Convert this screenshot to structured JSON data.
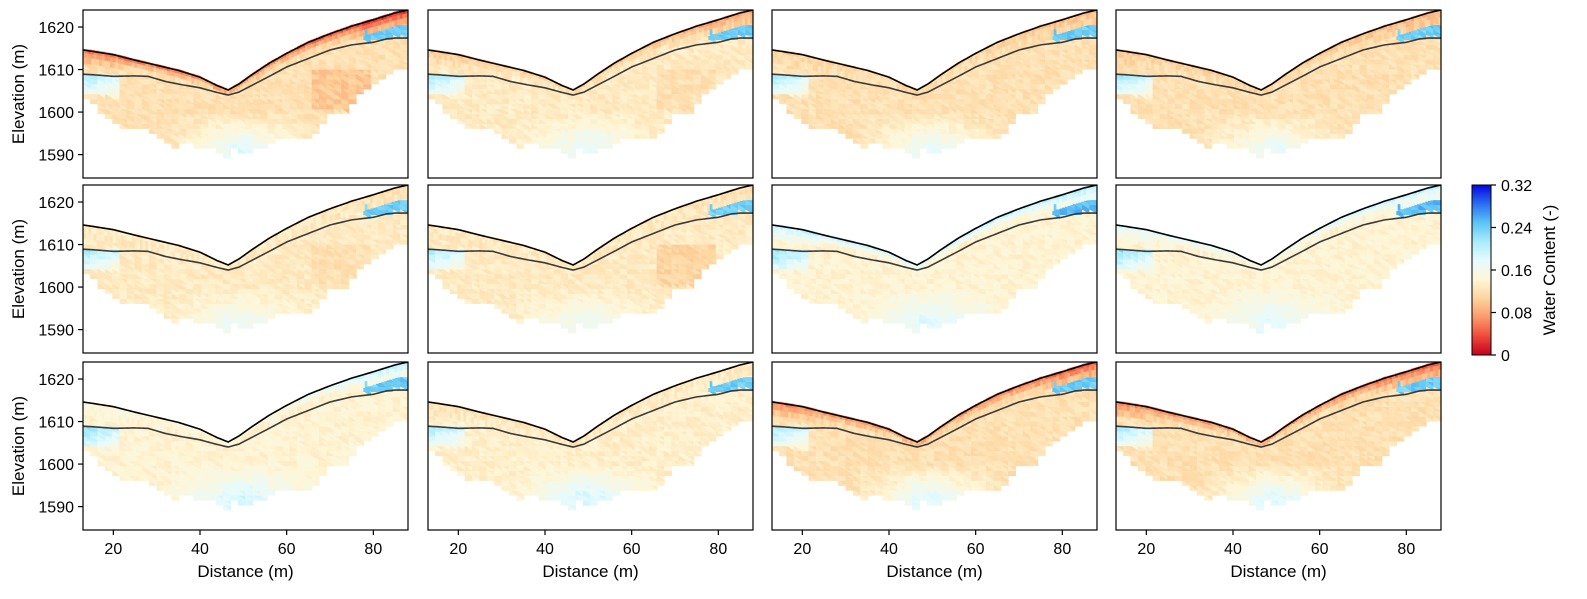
{
  "chart_data": {
    "type": "heatmap",
    "layout": {
      "rows": 3,
      "cols": 4
    },
    "xlabel": "Distance (m)",
    "ylabel": "Elevation (m)",
    "xlim": [
      13,
      88
    ],
    "ylim": [
      1584.5,
      1624
    ],
    "xticks": [
      20,
      40,
      60,
      80
    ],
    "yticks": [
      1590,
      1600,
      1610,
      1620
    ],
    "colorbar": {
      "label": "Water Content (-)",
      "range": [
        0,
        0.32
      ],
      "ticks": [
        "0",
        "0.08",
        "0.16",
        "0.24",
        "0.32"
      ],
      "colormap": [
        "#c4001e",
        "#f04a3a",
        "#fb9a6a",
        "#fdd49e",
        "#fff6d6",
        "#e6fbff",
        "#a9ecfb",
        "#5cc4f4",
        "#2a6ef2",
        "#0505e0"
      ]
    },
    "colors": {
      "surface_line": "#000000",
      "interface_line": "#3a3a3a"
    },
    "surface_profile": {
      "x": [
        13,
        15,
        20,
        25,
        30,
        35,
        40,
        44,
        46.5,
        49,
        52,
        56,
        60,
        65,
        70,
        75,
        80,
        85,
        88
      ],
      "y": [
        1614.6,
        1614.3,
        1613.5,
        1612.2,
        1611.0,
        1609.8,
        1608.2,
        1606.2,
        1605.2,
        1606.6,
        1608.8,
        1611.5,
        1613.8,
        1616.4,
        1618.4,
        1620.2,
        1621.7,
        1623.3,
        1624
      ]
    },
    "interface_profile": {
      "x": [
        13,
        15,
        20,
        25,
        28,
        32,
        36,
        40,
        44,
        46.5,
        49,
        52,
        56,
        60,
        65,
        70,
        75,
        80,
        83,
        85,
        88
      ],
      "y": [
        1608.9,
        1608.8,
        1608.4,
        1608.5,
        1608.4,
        1607.2,
        1606.4,
        1605.7,
        1604.6,
        1604.0,
        1604.7,
        1606.3,
        1608.4,
        1610.6,
        1612.6,
        1614.6,
        1615.8,
        1616.4,
        1617.2,
        1617.4,
        1617.4
      ]
    },
    "panels": [
      {
        "row": 0,
        "col": 0,
        "near_surface": 0.05,
        "right_surface": 0.02,
        "left_sat": 0.22,
        "right_sat": 0.24,
        "upper_bulk": 0.12,
        "deep_bulk": 0.18,
        "ravine": 0.08
      },
      {
        "row": 0,
        "col": 1,
        "near_surface": 0.1,
        "right_surface": 0.07,
        "left_sat": 0.22,
        "right_sat": 0.24,
        "upper_bulk": 0.13,
        "deep_bulk": 0.175,
        "ravine": 0.1
      },
      {
        "row": 0,
        "col": 2,
        "near_surface": 0.11,
        "right_surface": 0.09,
        "left_sat": 0.22,
        "right_sat": 0.24,
        "upper_bulk": 0.12,
        "deep_bulk": 0.175,
        "ravine": 0.1
      },
      {
        "row": 0,
        "col": 3,
        "near_surface": 0.1,
        "right_surface": 0.08,
        "left_sat": 0.22,
        "right_sat": 0.24,
        "upper_bulk": 0.12,
        "deep_bulk": 0.175,
        "ravine": 0.1
      },
      {
        "row": 1,
        "col": 0,
        "near_surface": 0.13,
        "right_surface": 0.12,
        "left_sat": 0.22,
        "right_sat": 0.24,
        "upper_bulk": 0.13,
        "deep_bulk": 0.17,
        "ravine": 0.1
      },
      {
        "row": 1,
        "col": 1,
        "near_surface": 0.13,
        "right_surface": 0.12,
        "left_sat": 0.22,
        "right_sat": 0.24,
        "upper_bulk": 0.13,
        "deep_bulk": 0.17,
        "ravine": 0.09
      },
      {
        "row": 1,
        "col": 2,
        "near_surface": 0.2,
        "right_surface": 0.21,
        "left_sat": 0.23,
        "right_sat": 0.25,
        "upper_bulk": 0.14,
        "deep_bulk": 0.185,
        "ravine": 0.13
      },
      {
        "row": 1,
        "col": 3,
        "near_surface": 0.18,
        "right_surface": 0.2,
        "left_sat": 0.23,
        "right_sat": 0.25,
        "upper_bulk": 0.14,
        "deep_bulk": 0.18,
        "ravine": 0.13
      },
      {
        "row": 2,
        "col": 0,
        "near_surface": 0.15,
        "right_surface": 0.2,
        "left_sat": 0.23,
        "right_sat": 0.24,
        "upper_bulk": 0.14,
        "deep_bulk": 0.19,
        "ravine": 0.12
      },
      {
        "row": 2,
        "col": 1,
        "near_surface": 0.12,
        "right_surface": 0.13,
        "left_sat": 0.22,
        "right_sat": 0.24,
        "upper_bulk": 0.135,
        "deep_bulk": 0.19,
        "ravine": 0.12
      },
      {
        "row": 2,
        "col": 2,
        "near_surface": 0.06,
        "right_surface": 0.04,
        "left_sat": 0.22,
        "right_sat": 0.24,
        "upper_bulk": 0.12,
        "deep_bulk": 0.185,
        "ravine": 0.1
      },
      {
        "row": 2,
        "col": 3,
        "near_surface": 0.06,
        "right_surface": 0.04,
        "left_sat": 0.22,
        "right_sat": 0.24,
        "upper_bulk": 0.12,
        "deep_bulk": 0.185,
        "ravine": 0.1
      }
    ]
  }
}
